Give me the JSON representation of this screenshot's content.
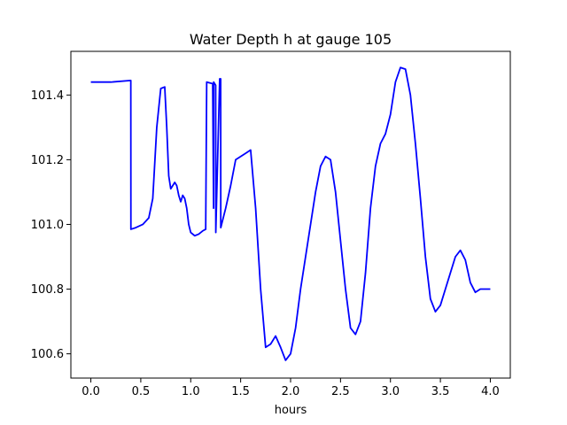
{
  "chart_data": {
    "type": "line",
    "title": "Water Depth h at gauge 105",
    "xlabel": "hours",
    "ylabel": "",
    "xlim": [
      -0.2,
      4.2
    ],
    "ylim": [
      100.525,
      101.535
    ],
    "x_ticks": [
      0.0,
      0.5,
      1.0,
      1.5,
      2.0,
      2.5,
      3.0,
      3.5,
      4.0
    ],
    "x_tick_labels": [
      "0.0",
      "0.5",
      "1.0",
      "1.5",
      "2.0",
      "2.5",
      "3.0",
      "3.5",
      "4.0"
    ],
    "y_ticks": [
      100.6,
      100.8,
      101.0,
      101.2,
      101.4
    ],
    "y_tick_labels": [
      "100.6",
      "100.8",
      "101.0",
      "101.2",
      "101.4"
    ],
    "grid": false,
    "series": [
      {
        "color": "#0000ff",
        "x": [
          0.0,
          0.2,
          0.4,
          0.401,
          0.45,
          0.52,
          0.58,
          0.62,
          0.66,
          0.7,
          0.74,
          0.76,
          0.78,
          0.8,
          0.82,
          0.84,
          0.86,
          0.88,
          0.9,
          0.92,
          0.94,
          0.96,
          0.98,
          1.0,
          1.04,
          1.08,
          1.12,
          1.15,
          1.16,
          1.161,
          1.22,
          1.229,
          1.23,
          1.25,
          1.251,
          1.29,
          1.3,
          1.301,
          1.35,
          1.4,
          1.45,
          1.5,
          1.55,
          1.6,
          1.65,
          1.7,
          1.75,
          1.8,
          1.85,
          1.9,
          1.95,
          2.0,
          2.05,
          2.1,
          2.15,
          2.2,
          2.25,
          2.3,
          2.35,
          2.4,
          2.45,
          2.5,
          2.55,
          2.6,
          2.65,
          2.7,
          2.75,
          2.8,
          2.85,
          2.9,
          2.95,
          3.0,
          3.05,
          3.1,
          3.15,
          3.2,
          3.25,
          3.3,
          3.35,
          3.4,
          3.45,
          3.5,
          3.55,
          3.6,
          3.65,
          3.7,
          3.75,
          3.8,
          3.85,
          3.9,
          3.95,
          4.0
        ],
        "y": [
          101.44,
          101.44,
          101.445,
          100.985,
          100.99,
          101.0,
          101.02,
          101.08,
          101.3,
          101.42,
          101.425,
          101.3,
          101.15,
          101.11,
          101.12,
          101.13,
          101.12,
          101.09,
          101.07,
          101.09,
          101.08,
          101.05,
          101.0,
          100.975,
          100.965,
          100.97,
          100.98,
          100.985,
          101.44,
          101.44,
          101.435,
          101.05,
          101.44,
          101.43,
          100.975,
          101.45,
          101.45,
          100.99,
          101.05,
          101.12,
          101.2,
          101.21,
          101.22,
          101.23,
          101.05,
          100.8,
          100.62,
          100.63,
          100.655,
          100.62,
          100.58,
          100.6,
          100.68,
          100.8,
          100.9,
          101.0,
          101.1,
          101.18,
          101.21,
          101.2,
          101.1,
          100.95,
          100.8,
          100.68,
          100.66,
          100.7,
          100.85,
          101.05,
          101.18,
          101.25,
          101.28,
          101.34,
          101.44,
          101.485,
          101.48,
          101.4,
          101.25,
          101.08,
          100.9,
          100.77,
          100.73,
          100.75,
          100.8,
          100.85,
          100.9,
          100.92,
          100.89,
          100.82,
          100.79,
          100.8,
          100.8,
          100.8
        ]
      }
    ]
  }
}
